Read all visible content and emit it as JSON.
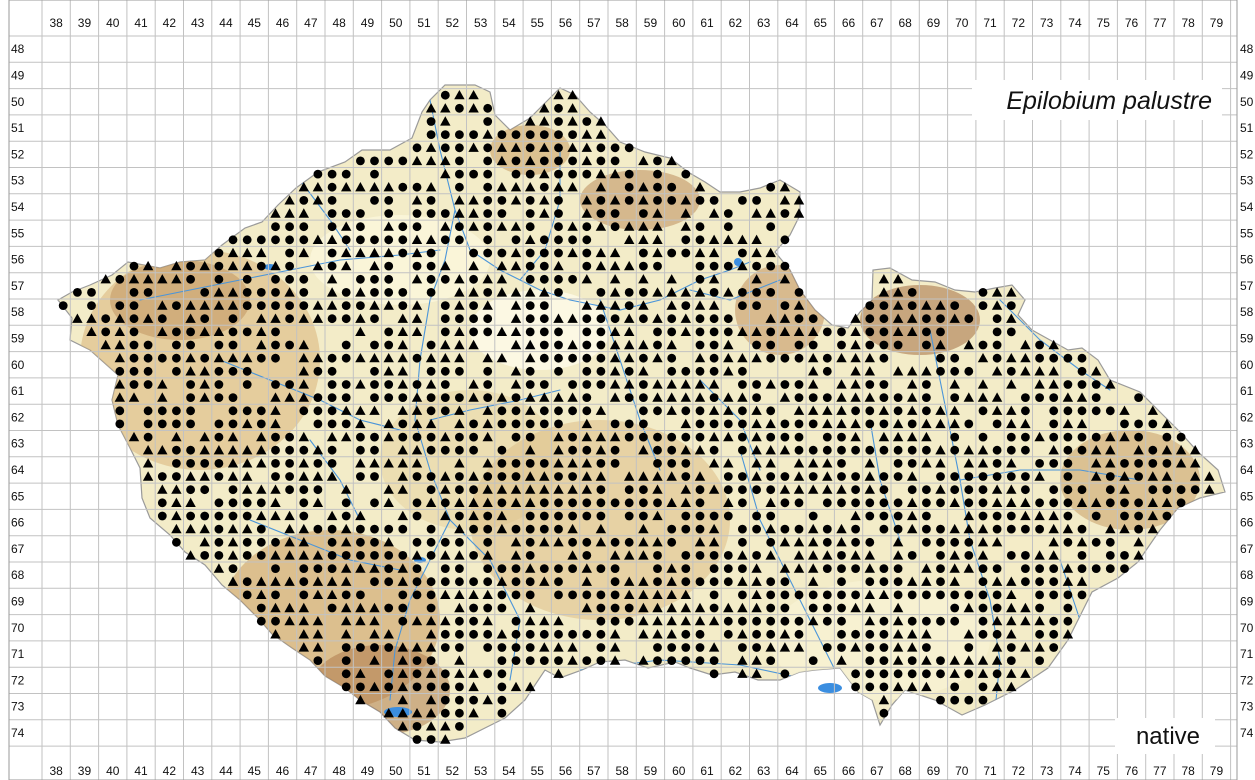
{
  "map": {
    "species": "Epilobium palustre",
    "status": "native",
    "grid": {
      "columns": [
        38,
        39,
        40,
        41,
        42,
        43,
        44,
        45,
        46,
        47,
        48,
        49,
        50,
        51,
        52,
        53,
        54,
        55,
        56,
        57,
        58,
        59,
        60,
        61,
        62,
        63,
        64,
        65,
        66,
        67,
        68,
        69,
        70,
        71,
        72,
        73,
        74,
        75,
        76,
        77,
        78,
        79
      ],
      "rows": [
        48,
        49,
        50,
        51,
        52,
        53,
        54,
        55,
        56,
        57,
        58,
        59,
        60,
        61,
        62,
        63,
        64,
        65,
        66,
        67,
        68,
        69,
        70,
        71,
        72,
        73,
        74
      ]
    },
    "colors": {
      "grid_line": "#c2c2c2",
      "terrain_lowland": "#f7f2cf",
      "terrain_upland": "#e2c792",
      "terrain_mountain": "#bd8a55",
      "rivers": "#4a95da",
      "lakes": "#3b8ee0",
      "record_marker": "#000000"
    },
    "legend_markers": {
      "circle": "filled-circle-record",
      "triangle": "filled-triangle-record"
    }
  }
}
